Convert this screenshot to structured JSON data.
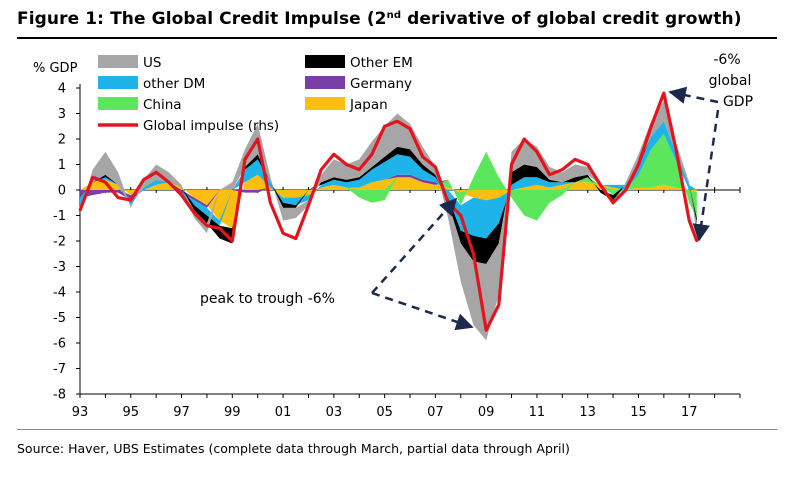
{
  "header": {
    "title_main": "Figure 1: The Global Credit Impulse (2",
    "title_sup": "nd",
    "title_tail": " derivative of global credit growth)"
  },
  "footer": {
    "source": "Source:  Haver, UBS Estimates (complete data through March, partial data through April)"
  },
  "chart_data": {
    "type": "area",
    "title": "The Global Credit Impulse (2nd derivative of global credit growth)",
    "ylabel": "% GDP",
    "ylim": [
      -8,
      4
    ],
    "yticks": [
      4,
      3,
      2,
      1,
      0,
      -1,
      -2,
      -3,
      -4,
      -5,
      -6,
      -7,
      -8
    ],
    "xlim": [
      1993,
      2019
    ],
    "xticks": [
      1993,
      1995,
      1997,
      1999,
      2001,
      2003,
      2005,
      2007,
      2009,
      2011,
      2013,
      2015,
      2017
    ],
    "xtick_labels": [
      "93",
      "95",
      "97",
      "99",
      "01",
      "03",
      "05",
      "07",
      "09",
      "11",
      "13",
      "15",
      "17"
    ],
    "colors": {
      "US": "#a6a6a6",
      "Other EM": "#000000",
      "other DM": "#1eb4ea",
      "Germany": "#7a3fa6",
      "China": "#5ce65c",
      "Japan": "#fdbf0f",
      "Global impulse (rhs)": "#e3141e"
    },
    "legend": [
      {
        "label": "US",
        "key": "US",
        "kind": "area"
      },
      {
        "label": "Other EM",
        "key": "Other EM",
        "kind": "area"
      },
      {
        "label": "other DM",
        "key": "other DM",
        "kind": "area"
      },
      {
        "label": "Germany",
        "key": "Germany",
        "kind": "area"
      },
      {
        "label": "China",
        "key": "China",
        "kind": "area"
      },
      {
        "label": "Japan",
        "key": "Japan",
        "kind": "area"
      },
      {
        "label": "Global impulse (rhs)",
        "key": "Global impulse (rhs)",
        "kind": "line"
      }
    ],
    "x": [
      1993.0,
      1993.5,
      1994.0,
      1994.5,
      1995.0,
      1995.5,
      1996.0,
      1996.5,
      1997.0,
      1997.5,
      1998.0,
      1998.5,
      1999.0,
      1999.5,
      2000.0,
      2000.5,
      2001.0,
      2001.5,
      2002.0,
      2002.5,
      2003.0,
      2003.5,
      2004.0,
      2004.5,
      2005.0,
      2005.5,
      2006.0,
      2006.5,
      2007.0,
      2007.5,
      2008.0,
      2008.5,
      2009.0,
      2009.5,
      2010.0,
      2010.5,
      2011.0,
      2011.5,
      2012.0,
      2012.5,
      2013.0,
      2013.5,
      2014.0,
      2014.5,
      2015.0,
      2015.5,
      2016.0,
      2016.5,
      2017.0,
      2017.3
    ],
    "series": [
      {
        "name": "Japan",
        "values": [
          0,
          0.3,
          0.4,
          0.2,
          -0.2,
          0,
          0.2,
          0.3,
          0.1,
          -0.3,
          -0.6,
          -1.2,
          -1.5,
          0.3,
          0.6,
          0.1,
          -0.3,
          -0.3,
          -0.2,
          0.1,
          0.2,
          0.1,
          0.1,
          0.3,
          0.4,
          0.5,
          0.5,
          0.3,
          0.2,
          0.1,
          -0.1,
          -0.3,
          -0.4,
          -0.3,
          0,
          0.1,
          0.2,
          0.1,
          0.2,
          0.3,
          0.3,
          0.2,
          0.1,
          0,
          0.1,
          0.1,
          0.2,
          0.1,
          0,
          -0.1
        ]
      },
      {
        "name": "China",
        "values": [
          0,
          0,
          0,
          0,
          0,
          0,
          0,
          0,
          0,
          0,
          0,
          0,
          0,
          0,
          0,
          0,
          0,
          0,
          0,
          0,
          0,
          0,
          -0.3,
          -0.5,
          -0.4,
          0,
          0,
          0,
          0,
          0.3,
          -0.5,
          0.5,
          1.5,
          0.5,
          -0.3,
          -1.0,
          -1.2,
          -0.5,
          -0.2,
          0,
          0.2,
          0,
          -0.2,
          0,
          0.5,
          1.5,
          2.0,
          1.0,
          -0.5,
          -1.0
        ]
      },
      {
        "name": "Germany",
        "values": [
          -0.3,
          -0.2,
          -0.1,
          -0.1,
          -0.2,
          0,
          0,
          0,
          -0.1,
          -0.1,
          -0.1,
          0,
          0,
          -0.1,
          -0.1,
          0,
          0,
          0,
          0,
          0,
          0,
          0,
          0,
          0,
          0,
          0.1,
          0.1,
          0.1,
          0.1,
          0,
          0,
          0,
          0,
          0,
          0,
          0,
          0,
          0,
          0,
          0,
          0,
          0,
          0,
          0,
          0,
          0,
          0,
          0,
          0,
          0
        ]
      },
      {
        "name": "other DM",
        "values": [
          -0.3,
          0,
          0.1,
          0,
          -0.2,
          0.1,
          0.2,
          0,
          -0.2,
          -0.2,
          -0.3,
          -0.2,
          0,
          0.5,
          0.6,
          0.2,
          -0.2,
          -0.3,
          -0.2,
          0.1,
          0.2,
          0.2,
          0.3,
          0.5,
          0.7,
          0.8,
          0.7,
          0.4,
          0.2,
          -0.3,
          -1.0,
          -1.5,
          -1.5,
          -1.0,
          0.2,
          0.4,
          0.3,
          0.2,
          0.1,
          0,
          0,
          0,
          0.1,
          0.2,
          0.3,
          0.5,
          0.5,
          0.3,
          0.2,
          0
        ]
      },
      {
        "name": "Other EM",
        "values": [
          0,
          0,
          0.1,
          0,
          0,
          0,
          0,
          0,
          0,
          -0.2,
          -0.3,
          -0.5,
          -0.6,
          0.1,
          0.2,
          0,
          -0.2,
          -0.1,
          0,
          0.1,
          0.1,
          0.1,
          0.1,
          0.1,
          0.2,
          0.3,
          0.3,
          0.2,
          0.1,
          -0.2,
          -0.5,
          -1.0,
          -1.0,
          -0.8,
          0.5,
          0.5,
          0.4,
          0.1,
          0,
          0.2,
          0.1,
          -0.1,
          -0.2,
          0,
          0.1,
          0,
          0,
          0,
          0,
          -0.2
        ]
      },
      {
        "name": "US",
        "values": [
          -0.3,
          0.5,
          0.9,
          0.5,
          -0.1,
          0.3,
          0.6,
          0.4,
          0.1,
          -0.3,
          -0.4,
          0,
          0.3,
          0.7,
          1.2,
          0.2,
          -0.5,
          -0.4,
          -0.2,
          0.3,
          0.7,
          0.6,
          0.7,
          1.0,
          1.2,
          1.3,
          1.0,
          0.7,
          0.3,
          -0.6,
          -1.5,
          -2.5,
          -3.0,
          -2.0,
          0.8,
          1.0,
          0.8,
          0.5,
          0.4,
          0.5,
          0.3,
          0.1,
          -0.2,
          0.1,
          0.4,
          0.6,
          0.8,
          0.4,
          0.1,
          -0.5
        ]
      },
      {
        "name": "Global impulse (rhs)",
        "values": [
          -0.8,
          0.5,
          0.3,
          -0.3,
          -0.4,
          0.4,
          0.7,
          0.3,
          -0.2,
          -0.9,
          -1.4,
          -1.5,
          -2.0,
          1.2,
          2.0,
          -0.5,
          -1.7,
          -1.9,
          -0.6,
          0.8,
          1.4,
          1.0,
          0.8,
          1.4,
          2.5,
          2.7,
          2.4,
          1.3,
          0.9,
          -0.5,
          -1.0,
          -2.5,
          -5.5,
          -4.5,
          1.0,
          2.0,
          1.5,
          0.6,
          0.8,
          1.2,
          1.0,
          0.2,
          -0.5,
          0,
          1.0,
          2.5,
          3.8,
          1.5,
          -1.2,
          -2.0
        ]
      }
    ],
    "annotations": [
      {
        "text": "peak to trough -6%"
      },
      {
        "text": "-6%"
      },
      {
        "text": "global"
      },
      {
        "text": "GDP"
      }
    ]
  }
}
